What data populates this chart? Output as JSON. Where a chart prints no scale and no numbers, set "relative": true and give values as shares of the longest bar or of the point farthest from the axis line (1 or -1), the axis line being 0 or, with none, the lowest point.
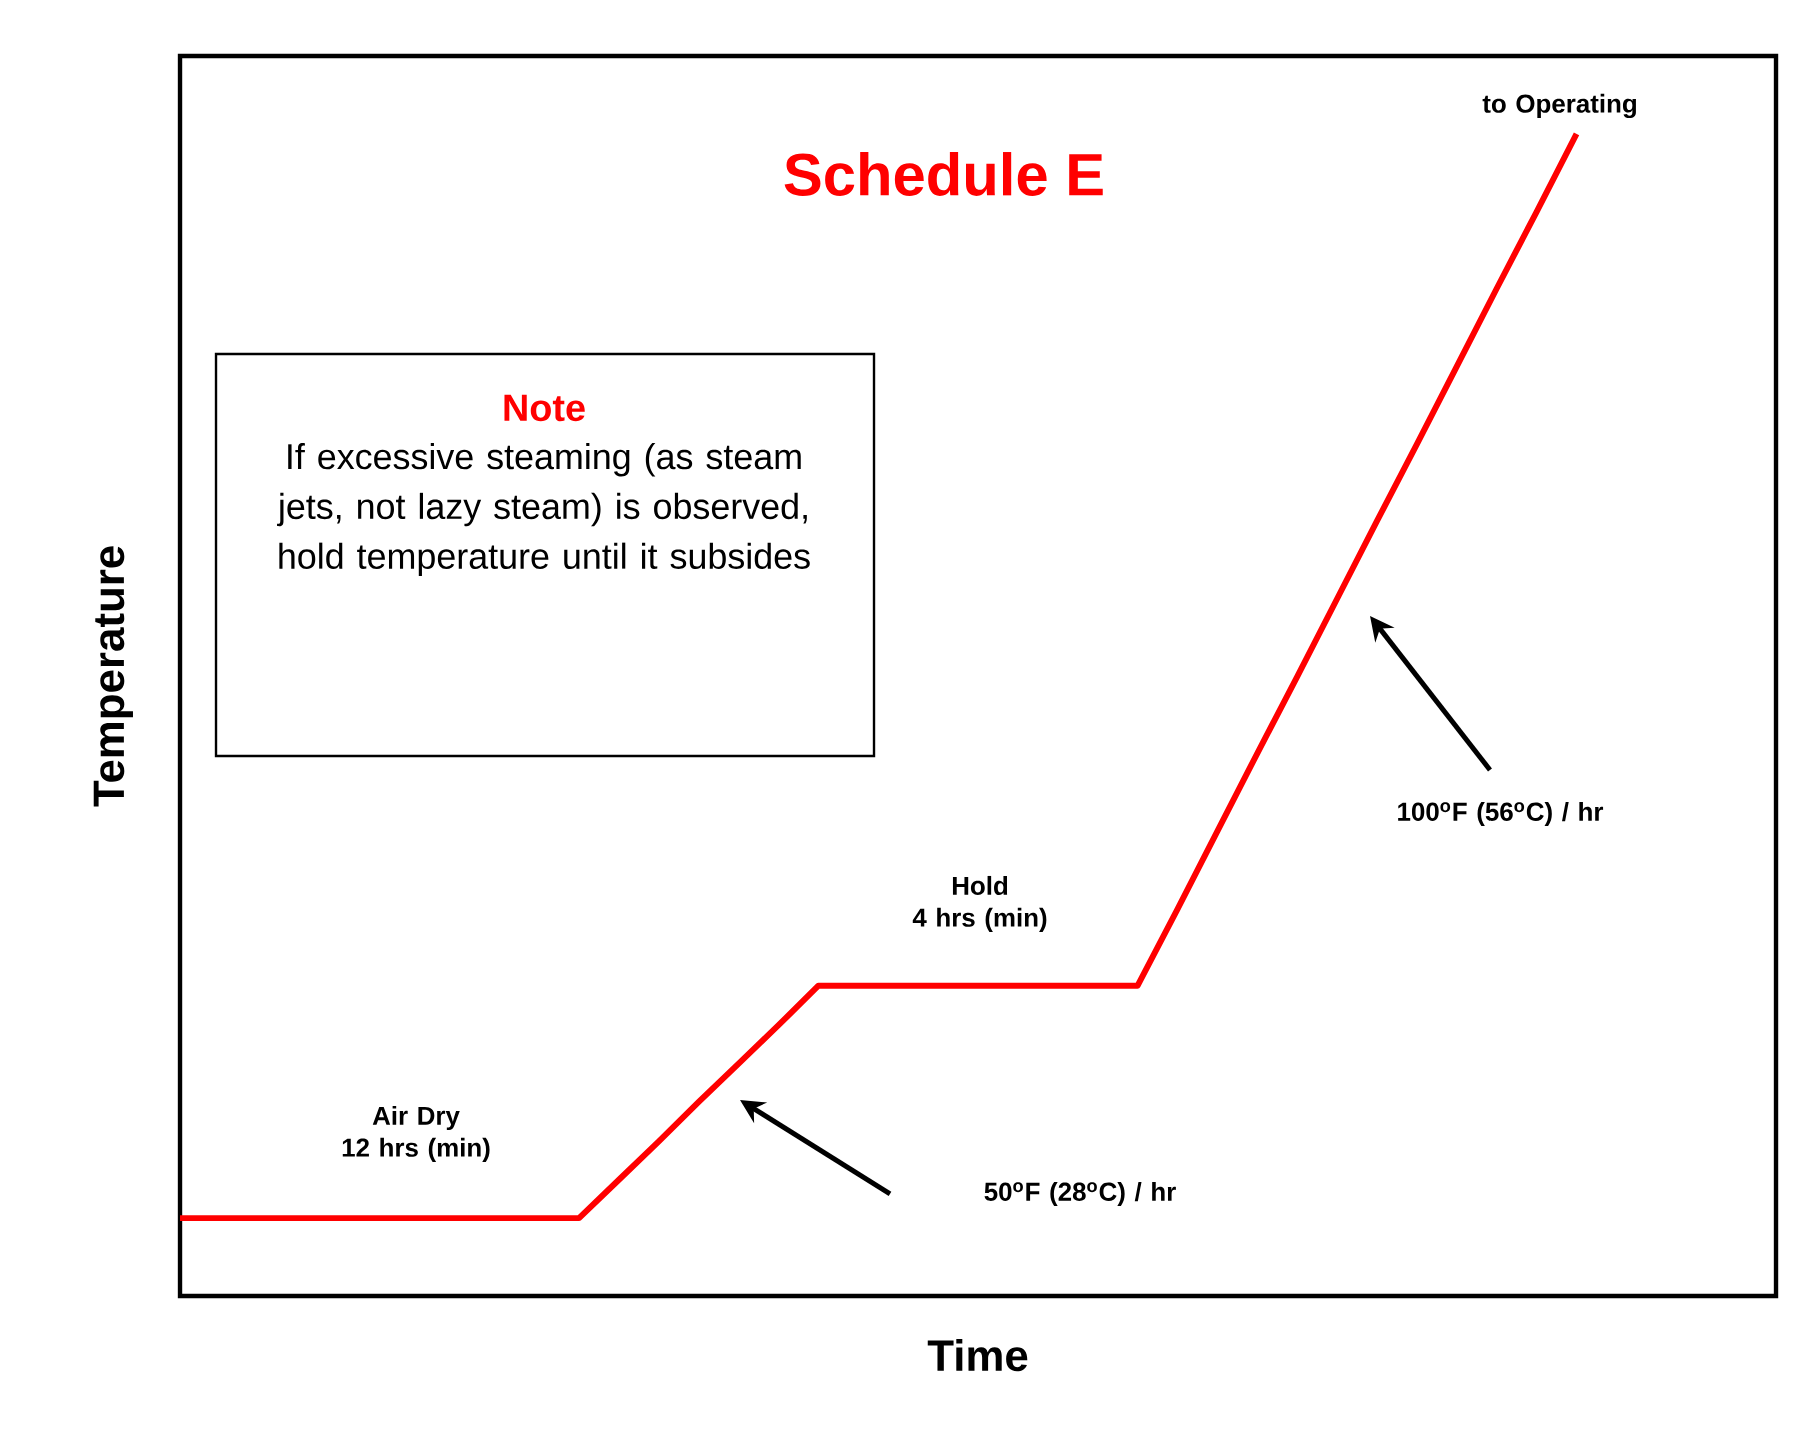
{
  "chart_data": {
    "type": "line",
    "title": "Schedule E",
    "xlabel": "Time",
    "ylabel": "Temperature",
    "relative": true,
    "categories": [
      null,
      null,
      null,
      null,
      null,
      null,
      null,
      null,
      null,
      null,
      null,
      null,
      null,
      null,
      null,
      null,
      null,
      null,
      null,
      null,
      null,
      null,
      null,
      null,
      null,
      null,
      null,
      null,
      null,
      null,
      null,
      null,
      null,
      null,
      null,
      null
    ],
    "series": [
      {
        "color": "#ff0000",
        "values": [
          0.067,
          0.067,
          0.067,
          0.067,
          0.067,
          0.067,
          0.067,
          0.067,
          0.067,
          0.067,
          0.067,
          0.1,
          0.133,
          0.167,
          0.2,
          0.233,
          0.267,
          0.267,
          0.267,
          0.267,
          0.267,
          0.267,
          0.267,
          0.267,
          0.267,
          0.333,
          0.4,
          0.467,
          0.533,
          0.6,
          0.667,
          0.733,
          0.8,
          0.867,
          0.933,
          1
        ]
      }
    ],
    "annotations": [
      "Note",
      "If excessive steaming (as steam jets, not lazy steam) is observed, hold temperature until it subsides",
      "Air Dry\n12 hrs (min)",
      "Hold\n4 hrs (min)",
      "50$^{o}$F (28$^{o}$C) / hr",
      "100$^{o}$F (56$^{o}$C) / hr",
      "to Operating"
    ]
  }
}
